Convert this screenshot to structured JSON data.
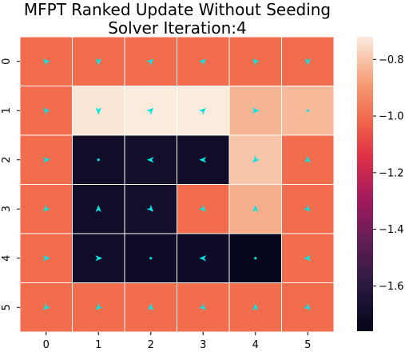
{
  "chart_data": {
    "type": "heatmap",
    "title_lines": [
      "MFPT Ranked Update Without Seeding",
      "Solver Iteration:4"
    ],
    "x_tick_labels": [
      "0",
      "1",
      "2",
      "3",
      "4",
      "5"
    ],
    "y_tick_labels": [
      "0",
      "1",
      "2",
      "3",
      "4",
      "5"
    ],
    "values": [
      [
        -1.0,
        -1.0,
        -1.0,
        -1.0,
        -1.0,
        -1.0
      ],
      [
        -1.0,
        -0.73,
        -0.72,
        -0.72,
        -0.83,
        -0.82
      ],
      [
        -1.0,
        -1.7,
        -1.68,
        -1.7,
        -0.8,
        -1.0
      ],
      [
        -1.0,
        -1.7,
        -1.68,
        -1.0,
        -0.85,
        -1.0
      ],
      [
        -1.0,
        -1.7,
        -1.71,
        -1.71,
        -1.75,
        -1.0
      ],
      [
        -1.0,
        -1.0,
        -1.0,
        -1.0,
        -1.0,
        -1.0
      ]
    ],
    "arrows": [
      [
        "arrow-up-left",
        "arrow-down",
        "arrow-up-right",
        "arrow-up-right",
        "arrow-up-left",
        "arrow-down"
      ],
      [
        "arrow-up-left",
        "arrow-down",
        "arrow-up-right",
        "arrow-up-right",
        "arrow-right",
        "dot"
      ],
      [
        "arrow-right",
        "dot",
        "arrow-left",
        "arrow-left",
        "arrow-down-left",
        "arrow-up"
      ],
      [
        "arrow-down-left",
        "arrow-up",
        "arrow-down-right",
        "arrow-down-right",
        "arrow-up",
        "arrow-down-right"
      ],
      [
        "arrow-right",
        "arrow-right",
        "dot",
        "arrow-left",
        "dot",
        "arrow-left"
      ],
      [
        "arrow-down-left",
        "arrow-down-left",
        "arrow-up",
        "arrow-down-right",
        "arrow-up",
        "arrow-down-right"
      ]
    ],
    "colorbar": {
      "min": -1.76,
      "max": -0.72,
      "ticks": [
        -0.8,
        -1.0,
        -1.2,
        -1.4,
        -1.6
      ],
      "tick_labels": [
        "−0.8",
        "−1.0",
        "−1.2",
        "−1.4",
        "−1.6"
      ],
      "colormap": "rocket"
    },
    "arrow_color": "#00e5e5",
    "grid_line_color": "#ffffff"
  }
}
